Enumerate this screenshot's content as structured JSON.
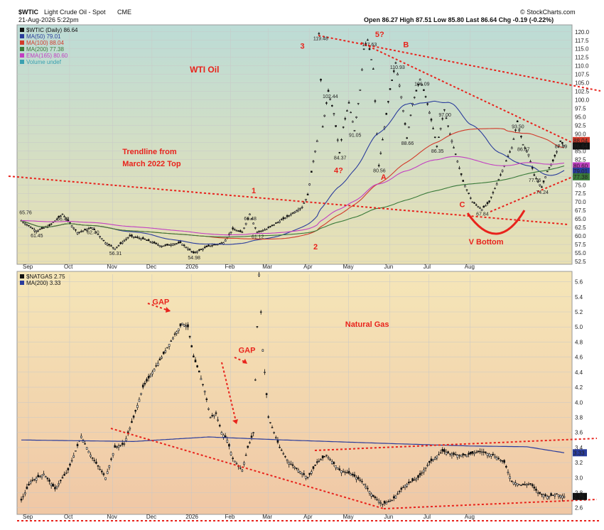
{
  "colors": {
    "up": "#111111",
    "down": "#111111",
    "trend": "#e8231c",
    "ma50": "#2a3c9c",
    "ma100": "#d23a2a",
    "ma200": "#3a7a3a",
    "ema165": "#c23fc2",
    "gas_ma200": "#2a3c9c"
  },
  "header": {
    "symbol": "$WTIC",
    "name": "Light Crude Oil - Spot",
    "exchange": "CME",
    "date": "21-Aug-2026 5:22pm",
    "ohlc": "Open 86.27  High 87.51  Low 85.80  Last 86.64  Chg -0.19 (-0.22%)",
    "logo": "© StockCharts.com"
  },
  "chart_data": [
    {
      "type": "line",
      "title": "WTI Oil",
      "xlabel": "",
      "ylabel": "",
      "ylim": [
        52.5,
        121
      ],
      "yticks": [
        "52.5",
        "55.0",
        "57.5",
        "60.0",
        "62.5",
        "65.0",
        "67.5",
        "70.0",
        "72.5",
        "75.0",
        "77.5",
        "80.0",
        "82.5",
        "85.0",
        "87.5",
        "90.0",
        "92.5",
        "95.0",
        "97.5",
        "100.0",
        "102.5",
        "105.0",
        "107.5",
        "110.0",
        "112.5",
        "115.0",
        "117.5",
        "120.0"
      ],
      "x_months": [
        "Sep",
        "Oct",
        "Nov",
        "Dec",
        "2026",
        "Feb",
        "Mar",
        "Apr",
        "May",
        "Jun",
        "Jul",
        "Aug"
      ],
      "legend": [
        {
          "label": "$WTIC (Daily) 86.64",
          "color": "#111111"
        },
        {
          "label": "MA(50) 79.01",
          "color": "#2a3c9c"
        },
        {
          "label": "MA(100) 88.04",
          "color": "#d23a2a"
        },
        {
          "label": "MA(200) 77.38",
          "color": "#3a7a3a"
        },
        {
          "label": "EMA(165) 80.60",
          "color": "#c23fc2"
        },
        {
          "label": "Volume undef",
          "color": "#3aa0b0"
        }
      ],
      "price_keypoints": [
        [
          0,
          64.5
        ],
        [
          8,
          61.45
        ],
        [
          15,
          63
        ],
        [
          22,
          66.42
        ],
        [
          30,
          61
        ],
        [
          38,
          62.4
        ],
        [
          45,
          58
        ],
        [
          50,
          56.31
        ],
        [
          58,
          60
        ],
        [
          66,
          59
        ],
        [
          75,
          57
        ],
        [
          85,
          58
        ],
        [
          92,
          54.98
        ],
        [
          100,
          57
        ],
        [
          108,
          58
        ],
        [
          113,
          62
        ],
        [
          118,
          61
        ],
        [
          122,
          66.48
        ],
        [
          126,
          61.12
        ],
        [
          131,
          62
        ],
        [
          137,
          64
        ],
        [
          143,
          66
        ],
        [
          150,
          68.5
        ],
        [
          153,
          72
        ],
        [
          156,
          82
        ],
        [
          158,
          88
        ],
        [
          159,
          119.48
        ],
        [
          161,
          92
        ],
        [
          164,
          102.44
        ],
        [
          167,
          96
        ],
        [
          170,
          84.37
        ],
        [
          172,
          92
        ],
        [
          175,
          99
        ],
        [
          178,
          91.05
        ],
        [
          181,
          103
        ],
        [
          183,
          115
        ],
        [
          185,
          117.63
        ],
        [
          188,
          109
        ],
        [
          191,
          80.56
        ],
        [
          194,
          92
        ],
        [
          197,
          103
        ],
        [
          200,
          110.93
        ],
        [
          203,
          101
        ],
        [
          206,
          88.66
        ],
        [
          209,
          99
        ],
        [
          213,
          106.09
        ],
        [
          216,
          101
        ],
        [
          219,
          94
        ],
        [
          222,
          86.35
        ],
        [
          226,
          97
        ],
        [
          229,
          90
        ],
        [
          232,
          84
        ],
        [
          236,
          76
        ],
        [
          241,
          70
        ],
        [
          246,
          67.84
        ],
        [
          250,
          70
        ],
        [
          256,
          78
        ],
        [
          262,
          86
        ],
        [
          265,
          93.5
        ],
        [
          268,
          86.87
        ],
        [
          271,
          84
        ],
        [
          274,
          77.76
        ],
        [
          278,
          74.24
        ],
        [
          281,
          79
        ],
        [
          284,
          82
        ],
        [
          288,
          87.69
        ],
        [
          290,
          86.64
        ]
      ],
      "labels": [
        {
          "t": "65.76",
          "x": 2,
          "y": 65.76
        },
        {
          "t": "61.45",
          "x": 8,
          "y": 61.45
        },
        {
          "t": "66.42",
          "x": 22,
          "y": 66.42
        },
        {
          "t": "62.40",
          "x": 38,
          "y": 62.4
        },
        {
          "t": "56.31",
          "x": 50,
          "y": 56.31
        },
        {
          "t": "54.98",
          "x": 92,
          "y": 54.98
        },
        {
          "t": "66.48",
          "x": 122,
          "y": 66.48
        },
        {
          "t": "61.12",
          "x": 126,
          "y": 61.12
        },
        {
          "t": "119.48",
          "x": 159,
          "y": 119.48
        },
        {
          "t": "102.44",
          "x": 164,
          "y": 102.44
        },
        {
          "t": "84.37",
          "x": 170,
          "y": 84.37
        },
        {
          "t": "91.05",
          "x": 178,
          "y": 91.05
        },
        {
          "t": "117.63",
          "x": 185,
          "y": 117.63
        },
        {
          "t": "80.56",
          "x": 191,
          "y": 80.56
        },
        {
          "t": "110.93",
          "x": 200,
          "y": 110.93
        },
        {
          "t": "88.66",
          "x": 206,
          "y": 88.66
        },
        {
          "t": "106.09",
          "x": 213,
          "y": 106.09
        },
        {
          "t": "97.00",
          "x": 226,
          "y": 97
        },
        {
          "t": "86.35",
          "x": 222,
          "y": 86.35
        },
        {
          "t": "67.84",
          "x": 246,
          "y": 67.84
        },
        {
          "t": "93.50",
          "x": 265,
          "y": 93.5
        },
        {
          "t": "86.87",
          "x": 268,
          "y": 86.87
        },
        {
          "t": "77.76",
          "x": 274,
          "y": 77.76
        },
        {
          "t": "74.24",
          "x": 278,
          "y": 74.24
        },
        {
          "t": "87.69",
          "x": 288,
          "y": 87.69
        }
      ],
      "right_tags": [
        {
          "t": "88.04",
          "y": 88.04,
          "color": "#d23a2a"
        },
        {
          "t": "86.64",
          "y": 86.64,
          "color": "#111111"
        },
        {
          "t": "80.60",
          "y": 80.6,
          "color": "#c23fc2"
        },
        {
          "t": "79.01",
          "y": 79.01,
          "color": "#2a3c9c"
        },
        {
          "t": "77.38",
          "y": 77.38,
          "color": "#3a7a3a"
        }
      ],
      "annotations": [
        {
          "t": "WTI Oil",
          "x": 90,
          "y": 108,
          "size": 12,
          "color": "#e8231c"
        },
        {
          "t": "Trendline from",
          "x": 54,
          "y": 84,
          "size": 11,
          "color": "#e8231c"
        },
        {
          "t": "March 2022 Top",
          "x": 54,
          "y": 80.5,
          "size": 11,
          "color": "#e8231c"
        },
        {
          "t": "1",
          "x": 123,
          "y": 72.5,
          "size": 11,
          "color": "#e8231c"
        },
        {
          "t": "2",
          "x": 156,
          "y": 56,
          "size": 11,
          "color": "#e8231c"
        },
        {
          "t": "3",
          "x": 149,
          "y": 115,
          "size": 11,
          "color": "#e8231c"
        },
        {
          "t": "4?",
          "x": 167,
          "y": 78.5,
          "size": 11,
          "color": "#e8231c"
        },
        {
          "t": "5?",
          "x": 189,
          "y": 118.5,
          "size": 11,
          "color": "#e8231c"
        },
        {
          "t": "A",
          "x": 192,
          "y": 76.5,
          "size": 11,
          "color": "#e8231c"
        },
        {
          "t": "B",
          "x": 204,
          "y": 115.5,
          "size": 11,
          "color": "#e8231c"
        },
        {
          "t": "C",
          "x": 234,
          "y": 68.5,
          "size": 11,
          "color": "#e8231c"
        },
        {
          "t": "V Bottom",
          "x": 239,
          "y": 57.5,
          "size": 11,
          "color": "#e8231c"
        }
      ]
    },
    {
      "type": "line",
      "title": "Natural Gas",
      "xlabel": "",
      "ylabel": "",
      "ylim": [
        2.55,
        5.7
      ],
      "yticks": [
        "2.6",
        "2.8",
        "3.0",
        "3.2",
        "3.4",
        "3.6",
        "3.8",
        "4.0",
        "4.2",
        "4.4",
        "4.6",
        "4.8",
        "5.0",
        "5.2",
        "5.4",
        "5.6"
      ],
      "x_months": [
        "Sep",
        "Oct",
        "Nov",
        "Dec",
        "2026",
        "Feb",
        "Mar",
        "Apr",
        "May",
        "Jun",
        "Jul",
        "Aug"
      ],
      "legend": [
        {
          "label": "$NATGAS 2.75",
          "color": "#111111"
        },
        {
          "label": "MA(200) 3.33",
          "color": "#2a3c9c"
        }
      ],
      "price_keypoints": [
        [
          0,
          2.7
        ],
        [
          5,
          2.95
        ],
        [
          12,
          3.05
        ],
        [
          18,
          2.85
        ],
        [
          25,
          3.1
        ],
        [
          32,
          3.55
        ],
        [
          37,
          3.3
        ],
        [
          45,
          3.0
        ],
        [
          50,
          3.4
        ],
        [
          55,
          3.45
        ],
        [
          60,
          3.8
        ],
        [
          65,
          4.2
        ],
        [
          70,
          4.4
        ],
        [
          75,
          4.6
        ],
        [
          82,
          4.9
        ],
        [
          86,
          5.05
        ],
        [
          89,
          5.0
        ],
        [
          92,
          4.6
        ],
        [
          95,
          4.4
        ],
        [
          98,
          4.15
        ],
        [
          101,
          3.8
        ],
        [
          104,
          3.85
        ],
        [
          107,
          3.6
        ],
        [
          110,
          3.5
        ],
        [
          113,
          3.25
        ],
        [
          118,
          3.1
        ],
        [
          121,
          3.4
        ],
        [
          124,
          3.6
        ],
        [
          127,
          5.7
        ],
        [
          129,
          4.7
        ],
        [
          132,
          3.8
        ],
        [
          135,
          3.6
        ],
        [
          138,
          3.4
        ],
        [
          143,
          3.2
        ],
        [
          148,
          3.1
        ],
        [
          153,
          3.0
        ],
        [
          158,
          3.2
        ],
        [
          163,
          3.3
        ],
        [
          170,
          3.1
        ],
        [
          176,
          3.05
        ],
        [
          182,
          2.95
        ],
        [
          188,
          2.75
        ],
        [
          193,
          2.65
        ],
        [
          198,
          2.7
        ],
        [
          205,
          2.9
        ],
        [
          212,
          3.0
        ],
        [
          218,
          3.2
        ],
        [
          225,
          3.35
        ],
        [
          232,
          3.3
        ],
        [
          238,
          3.3
        ],
        [
          245,
          3.35
        ],
        [
          252,
          3.3
        ],
        [
          258,
          3.2
        ],
        [
          262,
          2.95
        ],
        [
          267,
          2.9
        ],
        [
          272,
          2.92
        ],
        [
          276,
          2.8
        ],
        [
          281,
          2.75
        ],
        [
          286,
          2.78
        ],
        [
          290,
          2.75
        ]
      ],
      "ma200_keypoints": [
        [
          0,
          3.5
        ],
        [
          60,
          3.48
        ],
        [
          100,
          3.54
        ],
        [
          140,
          3.5
        ],
        [
          200,
          3.45
        ],
        [
          240,
          3.42
        ],
        [
          270,
          3.41
        ],
        [
          290,
          3.33
        ]
      ],
      "right_tags": [
        {
          "t": "3.33",
          "y": 3.33,
          "color": "#2a3c9c"
        },
        {
          "t": "2.75",
          "y": 2.75,
          "color": "#111111"
        }
      ],
      "annotations": [
        {
          "t": "Natural Gas",
          "x": 173,
          "y": 5.0,
          "size": 11,
          "color": "#e8231c"
        },
        {
          "t": "GAP",
          "x": 70,
          "y": 5.3,
          "size": 11,
          "color": "#e8231c"
        },
        {
          "t": "GAP",
          "x": 116,
          "y": 4.66,
          "size": 11,
          "color": "#e8231c"
        }
      ]
    }
  ]
}
